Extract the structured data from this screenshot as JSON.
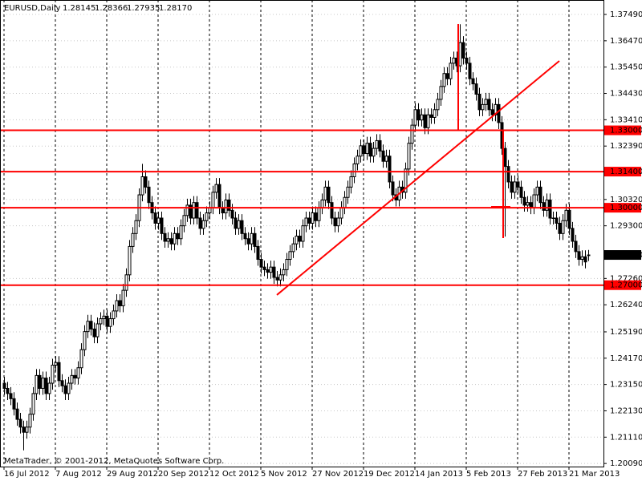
{
  "chart_data": {
    "type": "candlestick",
    "title": "EURUSD,Daily",
    "ohlc_labels": [
      "1.28145",
      "1.28366",
      "1.27935",
      "1.28170"
    ],
    "watermark": "MetaTrader, © 2001-2012, MetaQuotes Software Corp.",
    "categories": [
      "16 Jul 2012",
      null,
      null,
      null,
      null,
      null,
      null,
      null,
      null,
      null,
      null,
      null,
      null,
      null,
      null,
      null,
      "7 Aug 2012",
      null,
      null,
      null,
      null,
      null,
      null,
      null,
      null,
      null,
      null,
      null,
      null,
      null,
      null,
      null,
      "29 Aug 2012",
      null,
      null,
      null,
      null,
      null,
      null,
      null,
      null,
      null,
      null,
      null,
      null,
      null,
      null,
      null,
      "20 Sep 2012",
      null,
      null,
      null,
      null,
      null,
      null,
      null,
      null,
      null,
      null,
      null,
      null,
      null,
      null,
      null,
      "12 Oct 2012",
      null,
      null,
      null,
      null,
      null,
      null,
      null,
      null,
      null,
      null,
      null,
      null,
      null,
      null,
      null,
      "5 Nov 2012",
      null,
      null,
      null,
      null,
      null,
      null,
      null,
      null,
      null,
      null,
      null,
      null,
      null,
      null,
      null,
      "27 Nov 2012",
      null,
      null,
      null,
      null,
      null,
      null,
      null,
      null,
      null,
      null,
      null,
      null,
      null,
      null,
      null,
      "19 Dec 2012",
      null,
      null,
      null,
      null,
      null,
      null,
      null,
      null,
      null,
      null,
      null,
      null,
      null,
      null,
      null,
      "14 Jan 2013",
      null,
      null,
      null,
      null,
      null,
      null,
      null,
      null,
      null,
      null,
      null,
      null,
      null,
      null,
      null,
      "5 Feb 2013",
      null,
      null,
      null,
      null,
      null,
      null,
      null,
      null,
      null,
      null,
      null,
      null,
      null,
      null,
      null,
      "27 Feb 2013",
      null,
      null,
      null,
      null,
      null,
      null,
      null,
      null,
      null,
      null,
      null,
      null,
      null,
      null,
      null,
      "21 Mar 2013",
      null,
      null,
      null,
      null,
      null,
      null
    ],
    "open": [
      1.232,
      1.23,
      1.228,
      1.226,
      1.222,
      1.218,
      1.215,
      1.213,
      1.215,
      1.22,
      1.228,
      1.235,
      1.23,
      1.234,
      1.228,
      1.232,
      1.239,
      1.24,
      1.233,
      1.231,
      1.228,
      1.232,
      1.235,
      1.234,
      1.238,
      1.245,
      1.252,
      1.256,
      1.253,
      1.25,
      1.255,
      1.257,
      1.258,
      1.254,
      1.257,
      1.26,
      1.264,
      1.262,
      1.268,
      1.274,
      1.285,
      1.29,
      1.295,
      1.305,
      1.312,
      1.308,
      1.302,
      1.298,
      1.294,
      1.296,
      1.29,
      1.287,
      1.288,
      1.286,
      1.29,
      1.288,
      1.293,
      1.297,
      1.301,
      1.296,
      1.302,
      1.296,
      1.292,
      1.295,
      1.298,
      1.3,
      1.306,
      1.309,
      1.3,
      1.298,
      1.303,
      1.299,
      1.296,
      1.292,
      1.295,
      1.29,
      1.288,
      1.286,
      1.29,
      1.285,
      1.28,
      1.277,
      1.276,
      1.275,
      1.277,
      1.273,
      1.272,
      1.274,
      1.276,
      1.28,
      1.283,
      1.286,
      1.289,
      1.287,
      1.293,
      1.296,
      1.294,
      1.298,
      1.295,
      1.3,
      1.303,
      1.308,
      1.302,
      1.296,
      1.293,
      1.296,
      1.3,
      1.304,
      1.308,
      1.312,
      1.317,
      1.32,
      1.324,
      1.321,
      1.325,
      1.32,
      1.323,
      1.326,
      1.322,
      1.318,
      1.32,
      1.31,
      1.305,
      1.303,
      1.308,
      1.306,
      1.315,
      1.325,
      1.332,
      1.338,
      1.334,
      1.336,
      1.331,
      1.336,
      1.335,
      1.338,
      1.342,
      1.347,
      1.352,
      1.35,
      1.356,
      1.358,
      1.355,
      1.364,
      1.358,
      1.356,
      1.35,
      1.348,
      1.344,
      1.338,
      1.34,
      1.342,
      1.338,
      1.336,
      1.34,
      1.333,
      1.323,
      1.316,
      1.31,
      1.306,
      1.31,
      1.308,
      1.304,
      1.301,
      1.302,
      1.3,
      1.305,
      1.308,
      1.302,
      1.299,
      1.303,
      1.296,
      1.296,
      1.294,
      1.29,
      1.295,
      1.299,
      1.292,
      1.287,
      1.283,
      1.28,
      1.281,
      1.28145
    ],
    "high": [
      1.2345,
      1.2325,
      1.2305,
      1.2285,
      1.2245,
      1.2205,
      1.2175,
      1.2175,
      1.2225,
      1.2305,
      1.2375,
      1.2375,
      1.2365,
      1.2365,
      1.2345,
      1.2415,
      1.2425,
      1.2425,
      1.2355,
      1.2335,
      1.2345,
      1.2375,
      1.2375,
      1.2405,
      1.2475,
      1.2545,
      1.2585,
      1.2585,
      1.2555,
      1.2575,
      1.2595,
      1.2605,
      1.2605,
      1.2595,
      1.2625,
      1.2665,
      1.2665,
      1.2705,
      1.2765,
      1.2875,
      1.2925,
      1.2975,
      1.3075,
      1.317,
      1.3145,
      1.3105,
      1.3045,
      1.3005,
      1.2985,
      1.2985,
      1.2925,
      1.2905,
      1.2905,
      1.2925,
      1.2925,
      1.2955,
      1.2995,
      1.3035,
      1.3035,
      1.3045,
      1.3045,
      1.2985,
      1.2975,
      1.3005,
      1.3025,
      1.3085,
      1.3115,
      1.3115,
      1.3025,
      1.3055,
      1.3055,
      1.3015,
      1.2985,
      1.2975,
      1.2975,
      1.2925,
      1.2905,
      1.2925,
      1.2925,
      1.2875,
      1.2825,
      1.2795,
      1.2785,
      1.2795,
      1.2795,
      1.2755,
      1.2765,
      1.2785,
      1.2825,
      1.2855,
      1.2885,
      1.2915,
      1.2915,
      1.2955,
      1.2985,
      1.2985,
      1.3005,
      1.3005,
      1.3025,
      1.3055,
      1.3105,
      1.3105,
      1.3045,
      1.2985,
      1.2985,
      1.3025,
      1.3065,
      1.3105,
      1.3145,
      1.3195,
      1.3225,
      1.3265,
      1.3265,
      1.3275,
      1.3275,
      1.3255,
      1.3285,
      1.3285,
      1.3245,
      1.3225,
      1.3225,
      1.3125,
      1.3075,
      1.3105,
      1.3105,
      1.3175,
      1.3275,
      1.3345,
      1.3405,
      1.3405,
      1.3385,
      1.3385,
      1.3385,
      1.3385,
      1.3405,
      1.3445,
      1.3495,
      1.3545,
      1.3545,
      1.3585,
      1.3605,
      1.3605,
      1.3711,
      1.3665,
      1.3605,
      1.3585,
      1.3525,
      1.3505,
      1.3465,
      1.3425,
      1.3445,
      1.3445,
      1.3405,
      1.3425,
      1.3425,
      1.3355,
      1.3255,
      1.3185,
      1.3125,
      1.3125,
      1.3125,
      1.3105,
      1.3065,
      1.3045,
      1.3045,
      1.3075,
      1.3105,
      1.3105,
      1.3045,
      1.3055,
      1.3055,
      1.2985,
      1.2985,
      1.2965,
      1.2975,
      1.3015,
      1.3015,
      1.2945,
      1.2895,
      1.2855,
      1.2835,
      1.2835,
      1.28366
    ],
    "low": [
      1.2275,
      1.2255,
      1.2235,
      1.2195,
      1.2155,
      1.2125,
      1.206,
      1.2105,
      1.2125,
      1.2175,
      1.2255,
      1.2275,
      1.2275,
      1.2255,
      1.2255,
      1.2295,
      1.2365,
      1.2305,
      1.2285,
      1.2255,
      1.2255,
      1.2295,
      1.2315,
      1.2315,
      1.2355,
      1.2425,
      1.2495,
      1.2505,
      1.2475,
      1.2475,
      1.2525,
      1.2545,
      1.2515,
      1.2515,
      1.2545,
      1.2575,
      1.2595,
      1.2595,
      1.2655,
      1.2715,
      1.2825,
      1.2875,
      1.2925,
      1.3025,
      1.3055,
      1.2995,
      1.2955,
      1.2915,
      1.2915,
      1.2875,
      1.2845,
      1.2845,
      1.2835,
      1.2835,
      1.2855,
      1.2855,
      1.2905,
      1.2945,
      1.2935,
      1.2935,
      1.2935,
      1.2895,
      1.2895,
      1.2925,
      1.2955,
      1.2975,
      1.3035,
      1.2975,
      1.2955,
      1.2955,
      1.2965,
      1.2935,
      1.2895,
      1.2895,
      1.2875,
      1.2855,
      1.2835,
      1.2835,
      1.2825,
      1.2775,
      1.2745,
      1.2735,
      1.2725,
      1.2725,
      1.2705,
      1.2695,
      1.2695,
      1.2715,
      1.2735,
      1.2775,
      1.2805,
      1.2835,
      1.2845,
      1.2845,
      1.2905,
      1.2915,
      1.2915,
      1.2925,
      1.2925,
      1.2975,
      1.3005,
      1.2995,
      1.2935,
      1.2905,
      1.2905,
      1.2935,
      1.2975,
      1.3015,
      1.3055,
      1.3095,
      1.3145,
      1.3175,
      1.3185,
      1.3185,
      1.3175,
      1.3175,
      1.3205,
      1.3195,
      1.3155,
      1.3155,
      1.3075,
      1.3025,
      1.3005,
      1.3005,
      1.3035,
      1.3035,
      1.3125,
      1.3225,
      1.3295,
      1.3315,
      1.3315,
      1.3285,
      1.3285,
      1.3325,
      1.3325,
      1.3355,
      1.3395,
      1.3445,
      1.3475,
      1.3475,
      1.3535,
      1.3525,
      1.3525,
      1.3555,
      1.3535,
      1.3475,
      1.3455,
      1.3415,
      1.3355,
      1.3355,
      1.3375,
      1.3355,
      1.3335,
      1.3335,
      1.3305,
      1.3205,
      1.2888,
      1.3075,
      1.3035,
      1.3035,
      1.3055,
      1.3015,
      1.2985,
      1.2985,
      1.2975,
      1.2975,
      1.3025,
      1.2995,
      1.2965,
      1.2965,
      1.2935,
      1.2935,
      1.2915,
      1.2875,
      1.2875,
      1.2925,
      1.2895,
      1.2845,
      1.2805,
      1.2775,
      1.2775,
      1.2765,
      1.27935
    ],
    "close": [
      1.23,
      1.228,
      1.226,
      1.222,
      1.218,
      1.215,
      1.213,
      1.215,
      1.22,
      1.228,
      1.235,
      1.23,
      1.234,
      1.228,
      1.232,
      1.239,
      1.24,
      1.233,
      1.231,
      1.228,
      1.232,
      1.235,
      1.234,
      1.238,
      1.245,
      1.252,
      1.256,
      1.253,
      1.25,
      1.255,
      1.257,
      1.258,
      1.254,
      1.257,
      1.26,
      1.264,
      1.262,
      1.268,
      1.274,
      1.285,
      1.29,
      1.295,
      1.305,
      1.312,
      1.308,
      1.302,
      1.298,
      1.294,
      1.296,
      1.29,
      1.287,
      1.288,
      1.286,
      1.29,
      1.288,
      1.293,
      1.297,
      1.301,
      1.296,
      1.302,
      1.296,
      1.292,
      1.295,
      1.298,
      1.3,
      1.306,
      1.309,
      1.3,
      1.298,
      1.303,
      1.299,
      1.296,
      1.292,
      1.295,
      1.29,
      1.288,
      1.286,
      1.29,
      1.285,
      1.28,
      1.277,
      1.276,
      1.275,
      1.277,
      1.273,
      1.272,
      1.274,
      1.276,
      1.28,
      1.283,
      1.286,
      1.289,
      1.287,
      1.293,
      1.296,
      1.294,
      1.298,
      1.295,
      1.3,
      1.303,
      1.308,
      1.302,
      1.296,
      1.293,
      1.296,
      1.3,
      1.304,
      1.308,
      1.312,
      1.317,
      1.32,
      1.324,
      1.321,
      1.325,
      1.32,
      1.323,
      1.326,
      1.322,
      1.318,
      1.32,
      1.31,
      1.305,
      1.303,
      1.308,
      1.306,
      1.315,
      1.325,
      1.332,
      1.338,
      1.334,
      1.336,
      1.331,
      1.336,
      1.335,
      1.338,
      1.342,
      1.347,
      1.352,
      1.35,
      1.356,
      1.358,
      1.355,
      1.364,
      1.358,
      1.356,
      1.35,
      1.348,
      1.344,
      1.338,
      1.34,
      1.342,
      1.338,
      1.336,
      1.34,
      1.333,
      1.323,
      1.316,
      1.31,
      1.306,
      1.31,
      1.308,
      1.304,
      1.301,
      1.302,
      1.3,
      1.305,
      1.308,
      1.302,
      1.299,
      1.303,
      1.296,
      1.296,
      1.294,
      1.29,
      1.295,
      1.299,
      1.292,
      1.287,
      1.283,
      1.28,
      1.281,
      1.279,
      1.2817
    ],
    "up_color": "#ffffff",
    "down_color": "#000000",
    "wick_color": "#000000",
    "ylim": [
      1.1997,
      1.3805
    ],
    "yticks": [
      {
        "value": 1.3749,
        "label": "1.37490"
      },
      {
        "value": 1.3647,
        "label": "1.36470"
      },
      {
        "value": 1.3545,
        "label": "1.35450"
      },
      {
        "value": 1.3443,
        "label": "1.34430"
      },
      {
        "value": 1.3341,
        "label": "1.33410"
      },
      {
        "value": 1.3239,
        "label": "1.32390"
      },
      {
        "value": 1.3032,
        "label": "1.30320"
      },
      {
        "value": 1.293,
        "label": "1.29300"
      },
      {
        "value": 1.2726,
        "label": "1.27260"
      },
      {
        "value": 1.2624,
        "label": "1.26240"
      },
      {
        "value": 1.2519,
        "label": "1.25190"
      },
      {
        "value": 1.2417,
        "label": "1.24170"
      },
      {
        "value": 1.2315,
        "label": "1.23150"
      },
      {
        "value": 1.2213,
        "label": "1.22130"
      },
      {
        "value": 1.2111,
        "label": "1.21110"
      },
      {
        "value": 1.2009,
        "label": "1.20090"
      }
    ],
    "grid": true,
    "levels": [
      {
        "value": 1.33,
        "label": "1.33000"
      },
      {
        "value": 1.314,
        "label": "1.31400"
      },
      {
        "value": 1.3,
        "label": "1.30000"
      },
      {
        "value": 1.27,
        "label": "1.27000"
      }
    ],
    "level_color": "#ff0000",
    "trendline": {
      "start": {
        "index": 85,
        "price": 1.2662
      },
      "end": {
        "index": 173,
        "price": 1.3569
      }
    },
    "current_price": 1.2817
  }
}
